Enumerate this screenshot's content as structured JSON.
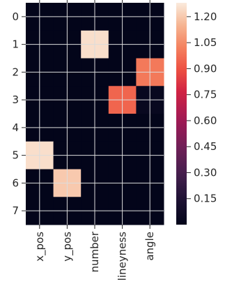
{
  "chart_data": {
    "type": "heatmap",
    "title": "",
    "xlabel": "",
    "ylabel": "",
    "x_categories": [
      "x_pos",
      "y_pos",
      "number",
      "lineyness",
      "angle"
    ],
    "y_categories": [
      "0",
      "1",
      "2",
      "3",
      "4",
      "5",
      "6",
      "7"
    ],
    "values": [
      [
        0.0,
        0.0,
        0.0,
        0.0,
        0.0
      ],
      [
        0.0,
        0.0,
        1.25,
        0.0,
        0.0
      ],
      [
        0.0,
        0.0,
        0.0,
        0.0,
        1.0
      ],
      [
        0.0,
        0.0,
        0.0,
        0.95,
        0.03
      ],
      [
        0.0,
        0.0,
        0.0,
        0.0,
        0.0
      ],
      [
        1.25,
        0.0,
        0.0,
        0.0,
        0.0
      ],
      [
        0.0,
        1.2,
        0.0,
        0.0,
        0.0
      ],
      [
        0.0,
        0.0,
        0.0,
        0.0,
        0.0
      ]
    ],
    "colorbar": {
      "ticks": [
        "0.15",
        "0.30",
        "0.45",
        "0.60",
        "0.75",
        "0.90",
        "1.05",
        "1.20"
      ],
      "tick_values": [
        0.15,
        0.3,
        0.45,
        0.6,
        0.75,
        0.9,
        1.05,
        1.2
      ],
      "range": [
        0.0,
        1.28
      ]
    },
    "colormap": "rocket",
    "grid": true
  }
}
